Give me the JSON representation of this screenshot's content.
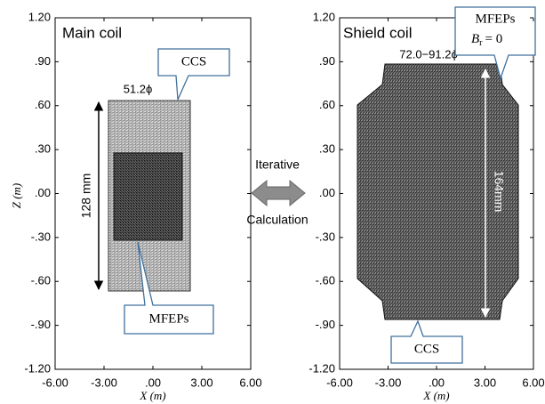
{
  "left_panel": {
    "title": "Main coil",
    "xticks": [
      "-6.00",
      "-3.00",
      ".00",
      "3.00",
      "6.00"
    ],
    "yticks": [
      "1.20",
      ".90",
      ".60",
      ".30",
      ".00",
      "-.30",
      "-.60",
      "-.90",
      "-1.20"
    ],
    "xlabel": "X (m)",
    "ylabel": "Z (m)",
    "ccs_label": "CCS",
    "mfeps_label": "MFEPs",
    "diameter": "51.2ϕ",
    "height": "128 mm"
  },
  "middle": {
    "top": "Iterative",
    "bottom": "Calculation"
  },
  "right_panel": {
    "title": "Shield coil",
    "xticks": [
      "-6.00",
      "-3.00",
      ".00",
      "3.00",
      "6.00"
    ],
    "yticks": [
      "1.20",
      ".90",
      ".60",
      ".30",
      ".00",
      "-.30",
      "-.60",
      "-.90",
      "-1.20"
    ],
    "xlabel": "X (m)",
    "mfeps_label": "MFEPs",
    "condition": {
      "symbol": "B",
      "subscript": "r",
      "rest": "= 0"
    },
    "ccs_label": "CCS",
    "diameter": "72.0−91.2ϕ",
    "height": "164mm"
  }
}
